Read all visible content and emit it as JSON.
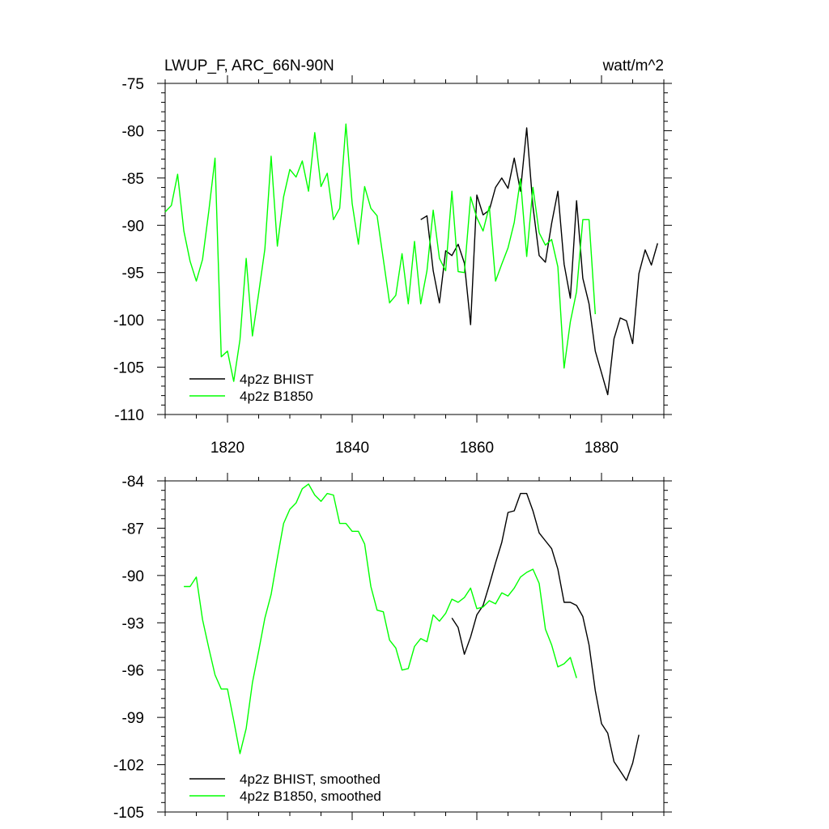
{
  "title": "LWUP_F, ARC_66N-90N",
  "units": "watt/m^2",
  "chart_data": [
    {
      "type": "line",
      "name": "raw",
      "xlim": [
        1810,
        1890
      ],
      "ylim": [
        -110,
        -75
      ],
      "xticks": [
        1820,
        1840,
        1860,
        1880
      ],
      "yticks": [
        -110,
        -105,
        -100,
        -95,
        -90,
        -85,
        -80,
        -75
      ],
      "legend_position": "bottom-left",
      "series": [
        {
          "name": "4p2z BHIST",
          "color": "#000000",
          "x": [
            1851,
            1852,
            1853,
            1854,
            1855,
            1856,
            1857,
            1858,
            1859,
            1860,
            1861,
            1862,
            1863,
            1864,
            1865,
            1866,
            1867,
            1868,
            1869,
            1870,
            1871,
            1872,
            1873,
            1874,
            1875,
            1876,
            1877,
            1878,
            1879,
            1880,
            1881,
            1882,
            1883,
            1884,
            1885,
            1886,
            1887,
            1888,
            1889
          ],
          "y": [
            -89.4,
            -89.0,
            -94.8,
            -98.2,
            -92.7,
            -93.2,
            -92.0,
            -94.0,
            -100.5,
            -86.8,
            -88.9,
            -88.4,
            -86.0,
            -85.0,
            -86.1,
            -82.9,
            -86.4,
            -79.7,
            -88.0,
            -93.2,
            -93.9,
            -89.8,
            -86.4,
            -94.1,
            -97.7,
            -87.4,
            -95.6,
            -98.3,
            -103.3,
            -105.6,
            -107.9,
            -102.0,
            -99.8,
            -100.1,
            -102.5,
            -95.1,
            -92.6,
            -94.2,
            -91.9
          ]
        },
        {
          "name": "4p2z B1850",
          "color": "#00ff00",
          "x": [
            1810,
            1811,
            1812,
            1813,
            1814,
            1815,
            1816,
            1817,
            1818,
            1819,
            1820,
            1821,
            1822,
            1823,
            1824,
            1825,
            1826,
            1827,
            1828,
            1829,
            1830,
            1831,
            1832,
            1833,
            1834,
            1835,
            1836,
            1837,
            1838,
            1839,
            1840,
            1841,
            1842,
            1843,
            1844,
            1845,
            1846,
            1847,
            1848,
            1849,
            1850,
            1851,
            1852,
            1853,
            1854,
            1855,
            1856,
            1857,
            1858,
            1859,
            1860,
            1861,
            1862,
            1863,
            1864,
            1865,
            1866,
            1867,
            1868,
            1869,
            1870,
            1871,
            1872,
            1873,
            1874,
            1875,
            1876,
            1877,
            1878,
            1879,
            1880
          ],
          "y": [
            -88.6,
            -87.9,
            -84.6,
            -90.6,
            -93.8,
            -95.9,
            -93.6,
            -88.5,
            -82.9,
            -103.9,
            -103.3,
            -106.5,
            -102.1,
            -93.5,
            -101.7,
            -97.2,
            -92.5,
            -82.7,
            -92.2,
            -87.0,
            -84.1,
            -84.9,
            -83.2,
            -86.4,
            -80.2,
            -85.9,
            -84.5,
            -89.4,
            -88.2,
            -79.3,
            -87.7,
            -92.0,
            -85.9,
            -88.2,
            -89.0,
            -93.6,
            -98.2,
            -97.4,
            -93.0,
            -98.3,
            -91.7,
            -98.3,
            -94.8,
            -88.4,
            -93.5,
            -94.8,
            -86.4,
            -94.9,
            -95.0,
            -87.0,
            -89.2,
            -90.6,
            -88.0,
            -95.9,
            -94.1,
            -92.4,
            -89.7,
            -85.1,
            -93.3,
            -86.0,
            -90.8,
            -92.1,
            -91.5,
            -94.4,
            -105.1,
            -100.2,
            -97.0,
            -89.4,
            -89.4,
            -99.4,
            null
          ]
        }
      ]
    },
    {
      "type": "line",
      "name": "smoothed",
      "xlim": [
        1810,
        1890
      ],
      "ylim": [
        -105,
        -84
      ],
      "yticks": [
        -105,
        -102,
        -99,
        -96,
        -93,
        -90,
        -87,
        -84
      ],
      "legend_position": "bottom-left",
      "series": [
        {
          "name": "4p2z BHIST, smoothed",
          "color": "#000000",
          "x": [
            1856,
            1857,
            1858,
            1859,
            1860,
            1861,
            1862,
            1863,
            1864,
            1865,
            1866,
            1867,
            1868,
            1869,
            1870,
            1871,
            1872,
            1873,
            1874,
            1875,
            1876,
            1877,
            1878,
            1879,
            1880,
            1881,
            1882,
            1883,
            1884,
            1885,
            1886
          ],
          "y": [
            -92.7,
            -93.3,
            -95.0,
            -93.9,
            -92.5,
            -91.9,
            -90.6,
            -89.2,
            -87.9,
            -86.0,
            -85.9,
            -84.8,
            -84.8,
            -85.9,
            -87.3,
            -87.8,
            -88.3,
            -89.6,
            -91.7,
            -91.7,
            -91.9,
            -92.6,
            -94.4,
            -97.3,
            -99.4,
            -100.0,
            -101.8,
            -102.4,
            -103.0,
            -101.9,
            -100.1
          ]
        },
        {
          "name": "4p2z B1850, smoothed",
          "color": "#00ff00",
          "x": [
            1813,
            1814,
            1815,
            1816,
            1817,
            1818,
            1819,
            1820,
            1821,
            1822,
            1823,
            1824,
            1825,
            1826,
            1827,
            1828,
            1829,
            1830,
            1831,
            1832,
            1833,
            1834,
            1835,
            1836,
            1837,
            1838,
            1839,
            1840,
            1841,
            1842,
            1843,
            1844,
            1845,
            1846,
            1847,
            1848,
            1849,
            1850,
            1851,
            1852,
            1853,
            1854,
            1855,
            1856,
            1857,
            1858,
            1859,
            1860,
            1861,
            1862,
            1863,
            1864,
            1865,
            1866,
            1867,
            1868,
            1869,
            1870,
            1871,
            1872,
            1873,
            1874,
            1875,
            1876,
            1877
          ],
          "y": [
            -90.7,
            -90.7,
            -90.1,
            -92.8,
            -94.6,
            -96.3,
            -97.2,
            -97.2,
            -99.2,
            -101.3,
            -99.7,
            -96.8,
            -94.8,
            -92.7,
            -91.2,
            -88.9,
            -86.7,
            -85.8,
            -85.4,
            -84.5,
            -84.2,
            -84.9,
            -85.3,
            -84.8,
            -84.9,
            -86.7,
            -86.7,
            -87.2,
            -87.2,
            -88.0,
            -90.7,
            -92.2,
            -92.3,
            -94.1,
            -94.6,
            -96.0,
            -95.9,
            -94.5,
            -94.0,
            -94.2,
            -92.5,
            -92.9,
            -92.4,
            -91.5,
            -91.7,
            -91.4,
            -90.8,
            -92.1,
            -92.0,
            -91.6,
            -91.8,
            -91.1,
            -91.3,
            -90.8,
            -90.1,
            -89.8,
            -89.6,
            -90.5,
            -93.4,
            -94.4,
            -95.8,
            -95.6,
            -95.2,
            -96.5,
            null
          ]
        }
      ]
    }
  ]
}
